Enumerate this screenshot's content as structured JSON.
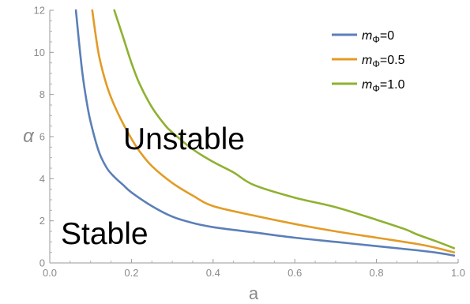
{
  "chart_data": {
    "type": "line",
    "xlabel": "a",
    "ylabel": "α",
    "xlim": [
      0,
      1
    ],
    "ylim": [
      0,
      12
    ],
    "xticks": [
      0.0,
      0.2,
      0.4,
      0.6,
      0.8,
      1.0
    ],
    "xtick_labels": [
      "0.0",
      "0.2",
      "0.4",
      "0.6",
      "0.8",
      "1.0"
    ],
    "yticks": [
      0,
      2,
      4,
      6,
      8,
      10,
      12
    ],
    "ytick_labels": [
      "0",
      "2",
      "4",
      "6",
      "8",
      "10",
      "12"
    ],
    "grid": false,
    "legend_position": "top-right",
    "series": [
      {
        "name": "m_Φ=0",
        "legend_base": "m",
        "legend_sub": "Φ",
        "legend_rest": "=0",
        "color": "#5b7fb8",
        "x": [
          0.064,
          0.07,
          0.08,
          0.09,
          0.1,
          0.12,
          0.14,
          0.16,
          0.18,
          0.2,
          0.25,
          0.3,
          0.35,
          0.4,
          0.5,
          0.6,
          0.7,
          0.8,
          0.9,
          0.95,
          0.99
        ],
        "y": [
          12.0,
          10.8,
          9.0,
          7.7,
          6.7,
          5.3,
          4.5,
          4.05,
          3.7,
          3.35,
          2.7,
          2.2,
          1.9,
          1.7,
          1.45,
          1.2,
          1.0,
          0.8,
          0.6,
          0.48,
          0.35
        ]
      },
      {
        "name": "m_Φ=0.5",
        "legend_base": "m",
        "legend_sub": "Φ",
        "legend_rest": "=0.5",
        "color": "#e39b25",
        "x": [
          0.104,
          0.12,
          0.14,
          0.16,
          0.18,
          0.2,
          0.22,
          0.25,
          0.3,
          0.35,
          0.4,
          0.5,
          0.6,
          0.7,
          0.8,
          0.9,
          0.95,
          0.99
        ],
        "y": [
          12.0,
          9.9,
          8.4,
          7.4,
          6.6,
          5.9,
          5.3,
          4.6,
          3.8,
          3.2,
          2.7,
          2.25,
          1.85,
          1.5,
          1.2,
          0.9,
          0.7,
          0.5
        ]
      },
      {
        "name": "m_Φ=1.0",
        "legend_base": "m",
        "legend_sub": "Φ",
        "legend_rest": "=1.0",
        "color": "#8fb131",
        "x": [
          0.158,
          0.18,
          0.2,
          0.22,
          0.25,
          0.28,
          0.3,
          0.35,
          0.4,
          0.45,
          0.5,
          0.6,
          0.7,
          0.8,
          0.87,
          0.9,
          0.95,
          0.99
        ],
        "y": [
          12.0,
          10.7,
          9.5,
          8.5,
          7.4,
          6.6,
          6.2,
          5.4,
          4.8,
          4.3,
          3.7,
          3.1,
          2.65,
          2.05,
          1.6,
          1.35,
          1.0,
          0.7
        ]
      }
    ],
    "annotations": [
      {
        "text": "Unstable",
        "x": 0.165,
        "y": 5.4
      },
      {
        "text": "Stable",
        "x": 0.035,
        "y": 1.0
      }
    ]
  }
}
